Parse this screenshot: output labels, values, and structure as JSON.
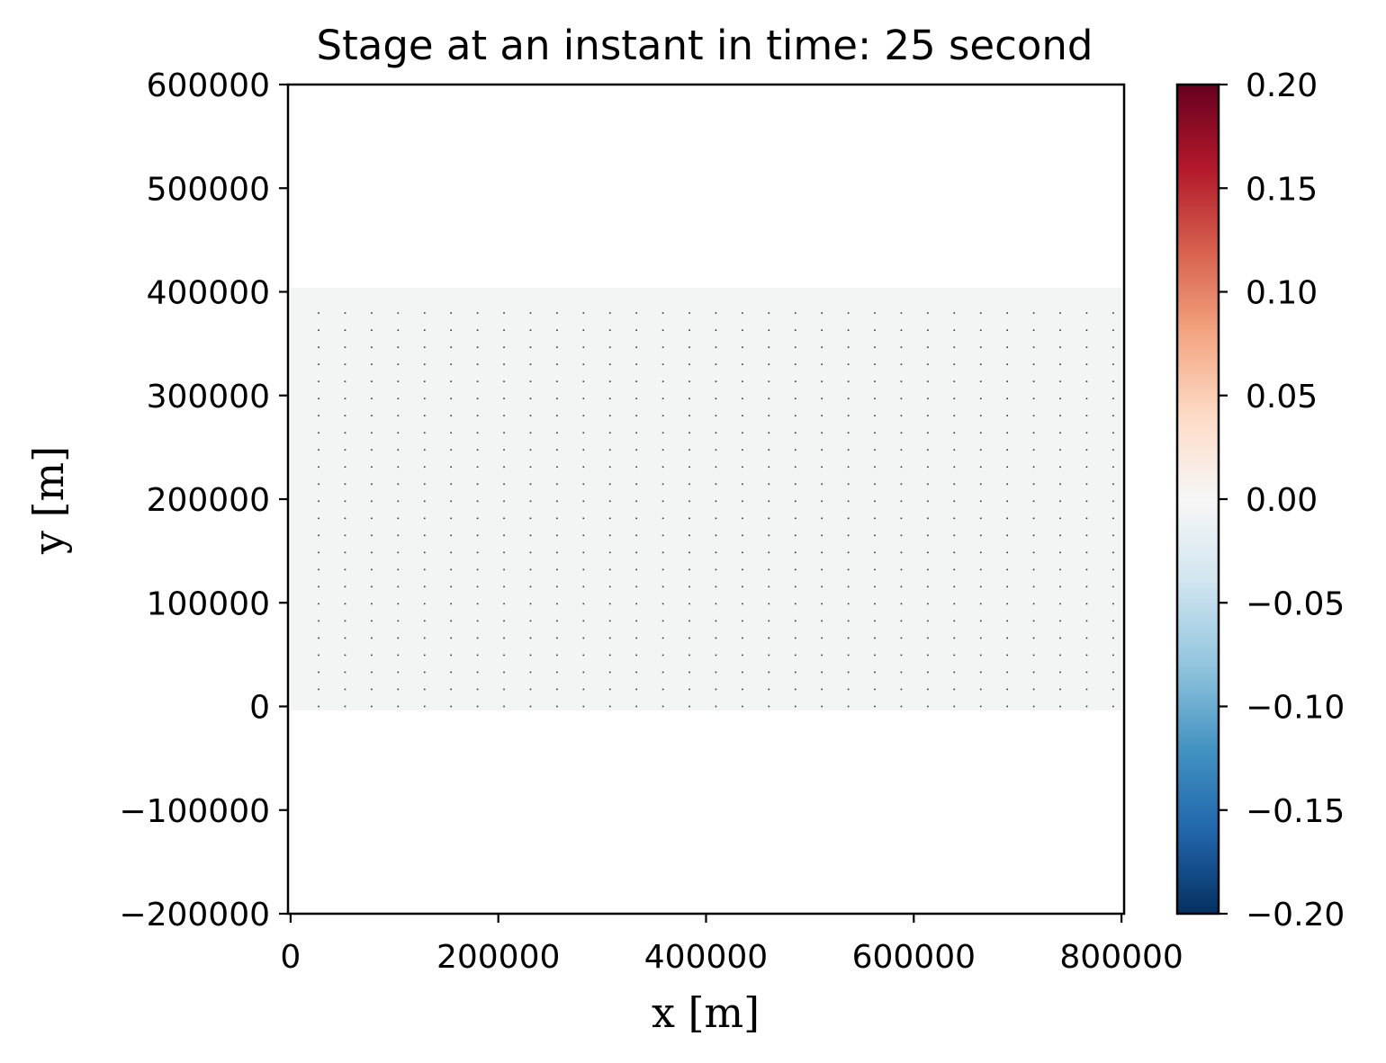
{
  "chart_data": {
    "type": "heatmap",
    "title": "Stage at an instant in time: 25 second",
    "xlabel": "x [m]",
    "ylabel": "y [m]",
    "xlim": [
      -2500,
      802500
    ],
    "ylim": [
      -200000,
      600000
    ],
    "x_ticks": [
      0,
      200000,
      400000,
      600000,
      800000
    ],
    "x_tick_labels": [
      "0",
      "200000",
      "400000",
      "600000",
      "800000"
    ],
    "y_ticks": [
      -200000,
      -100000,
      0,
      100000,
      200000,
      300000,
      400000,
      500000,
      600000
    ],
    "y_tick_labels": [
      "−200000",
      "−100000",
      "0",
      "100000",
      "200000",
      "300000",
      "400000",
      "500000",
      "600000"
    ],
    "field": {
      "description": "stage field",
      "x_range": [
        0,
        800000
      ],
      "y_range": [
        -4000,
        404000
      ],
      "value_approx": 0.0,
      "color": "#f3f4f4"
    },
    "mesh_points": {
      "x_start": 27000,
      "x_step": 25500,
      "x_count": 31,
      "y_start": 0,
      "y_step": 16500,
      "y_count": 24,
      "color": "#333333"
    },
    "colorbar": {
      "colormap": "RdBu_r",
      "vmin": -0.2,
      "vmax": 0.2,
      "ticks": [
        -0.2,
        -0.15,
        -0.1,
        -0.05,
        0.0,
        0.05,
        0.1,
        0.15,
        0.2
      ],
      "tick_labels": [
        "−0.20",
        "−0.15",
        "−0.10",
        "−0.05",
        "0.00",
        "0.05",
        "0.10",
        "0.15",
        "0.20"
      ],
      "colors": [
        "#053061",
        "#2166ac",
        "#4393c3",
        "#92c5de",
        "#d1e5f0",
        "#f7f7f7",
        "#fddbc7",
        "#f4a582",
        "#d6604d",
        "#b2182b",
        "#67001f"
      ]
    }
  }
}
